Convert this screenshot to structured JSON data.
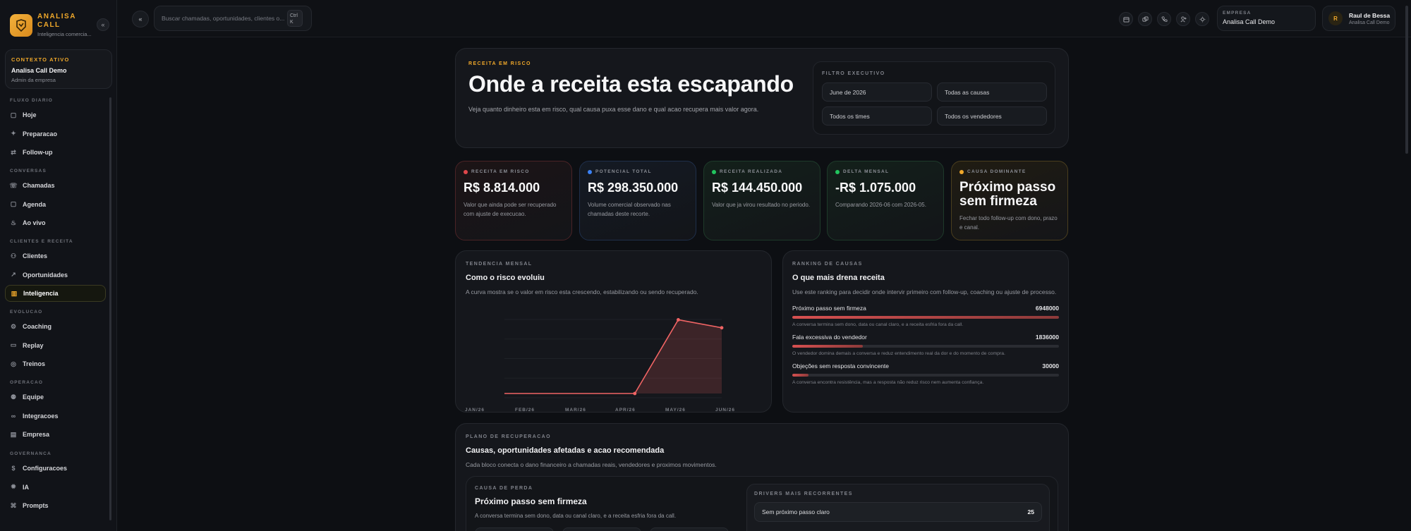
{
  "brand": {
    "name": "ANALISA CALL",
    "subtitle": "Inteligencia comercia..."
  },
  "context": {
    "label": "CONTEXTO ATIVO",
    "title": "Analisa Call Demo",
    "subtitle": "Admin da empresa"
  },
  "nav": {
    "sections": [
      {
        "label": "FLUXO DIARIO",
        "items": [
          {
            "label": "Hoje",
            "icon": "calendar-icon"
          },
          {
            "label": "Preparacao",
            "icon": "sparkle-icon"
          },
          {
            "label": "Follow-up",
            "icon": "shuffle-icon"
          }
        ]
      },
      {
        "label": "CONVERSAS",
        "items": [
          {
            "label": "Chamadas",
            "icon": "phone-icon"
          },
          {
            "label": "Agenda",
            "icon": "calendar-icon"
          },
          {
            "label": "Ao vivo",
            "icon": "flame-icon"
          }
        ]
      },
      {
        "label": "CLIENTES E RECEITA",
        "items": [
          {
            "label": "Clientes",
            "icon": "users-icon"
          },
          {
            "label": "Oportunidades",
            "icon": "trending-up-icon"
          },
          {
            "label": "Inteligencia",
            "icon": "chart-icon",
            "active": true
          }
        ]
      },
      {
        "label": "EVOLUCAO",
        "items": [
          {
            "label": "Coaching",
            "icon": "gear-icon"
          },
          {
            "label": "Replay",
            "icon": "video-icon"
          },
          {
            "label": "Treinos",
            "icon": "target-icon"
          }
        ]
      },
      {
        "label": "OPERACAO",
        "items": [
          {
            "label": "Equipe",
            "icon": "team-icon"
          },
          {
            "label": "Integracoes",
            "icon": "link-icon"
          },
          {
            "label": "Empresa",
            "icon": "building-icon"
          }
        ]
      },
      {
        "label": "GOVERNANCA",
        "items": [
          {
            "label": "Configuracoes",
            "icon": "dollar-icon"
          },
          {
            "label": "IA",
            "icon": "ai-gear-icon"
          },
          {
            "label": "Prompts",
            "icon": "prompt-icon"
          }
        ]
      }
    ]
  },
  "topbar": {
    "search_placeholder": "Buscar chamadas, oportunidades, clientes o...",
    "shortcut_line1": "Ctrl",
    "shortcut_line2": "K",
    "company_label": "EMPRESA",
    "company_name": "Analisa Call Demo",
    "user_initial": "R",
    "user_name": "Raul de Bessa",
    "user_company": "Analisa Call Demo"
  },
  "hero": {
    "eyebrow": "RECEITA EM RISCO",
    "title": "Onde a receita esta escapando",
    "subtitle": "Veja quanto dinheiro esta em risco, qual causa puxa esse dano e qual acao recupera mais valor agora.",
    "filter_label": "FILTRO EXECUTIVO",
    "filters": [
      "June de 2026",
      "Todas as causas",
      "Todos os times",
      "Todos os vendedores"
    ]
  },
  "kpis": [
    {
      "label": "RECEITA EM RISCO",
      "value": "R$ 8.814.000",
      "desc": "Valor que ainda pode ser recuperado com ajuste de execucao.",
      "color": "#e0474b"
    },
    {
      "label": "POTENCIAL TOTAL",
      "value": "R$ 298.350.000",
      "desc": "Volume comercial observado nas chamadas deste recorte.",
      "color": "#3b82f6"
    },
    {
      "label": "RECEITA REALIZADA",
      "value": "R$ 144.450.000",
      "desc": "Valor que ja virou resultado no periodo.",
      "color": "#22c55e"
    },
    {
      "label": "DELTA MENSAL",
      "value": "-R$ 1.075.000",
      "desc": "Comparando 2026-06 com 2026-05.",
      "color": "#22c55e"
    },
    {
      "label": "CAUSA DOMINANTE",
      "value": "Próximo passo sem firmeza",
      "desc": "Fechar todo follow-up com dono, prazo e canal.",
      "color": "#f0a82a"
    }
  ],
  "trend": {
    "eyebrow": "TENDENCIA MENSAL",
    "title": "Como o risco evoluiu",
    "subtitle": "A curva mostra se o valor em risco esta crescendo, estabilizando ou sendo recuperado."
  },
  "chart_data": {
    "type": "area",
    "categories": [
      "JAN/26",
      "FEB/26",
      "MAR/26",
      "APR/26",
      "MAY/26",
      "JUN/26"
    ],
    "values": [
      0,
      0,
      0,
      0,
      9890000,
      8814000
    ],
    "ylim": [
      0,
      10500000
    ],
    "grid": true,
    "color": "#f06464"
  },
  "ranking": {
    "eyebrow": "RANKING DE CAUSAS",
    "title": "O que mais drena receita",
    "subtitle": "Use este ranking para decidir onde intervir primeiro com follow-up, coaching ou ajuste de processo.",
    "items": [
      {
        "label": "Próximo passo sem firmeza",
        "value": "6948000",
        "share": 1.0,
        "desc": "A conversa termina sem dono, data ou canal claro, e a receita esfria fora da call."
      },
      {
        "label": "Fala excessiva do vendedor",
        "value": "1836000",
        "share": 0.264,
        "desc": "O vendedor domina demais a conversa e reduz entendimento real da dor e do momento de compra."
      },
      {
        "label": "Objeções sem resposta convincente",
        "value": "30000",
        "share": 0.06,
        "desc": "A conversa encontra resistência, mas a resposta não reduz risco nem aumenta confiança."
      }
    ]
  },
  "recovery": {
    "eyebrow": "PLANO DE RECUPERACAO",
    "title": "Causas, oportunidades afetadas e acao recomendada",
    "subtitle": "Cada bloco conecta o dano financeiro a chamadas reais, vendedores e proximos movimentos.",
    "cause_eyebrow": "CAUSA DE PERDA",
    "cause_title": "Próximo passo sem firmeza",
    "cause_sub": "A conversa termina sem dono, data ou canal claro, e a receita esfria fora da call.",
    "drivers_label": "DRIVERS MAIS RECORRENTES",
    "driver_name": "Sem próximo passo claro",
    "driver_count": "25"
  }
}
